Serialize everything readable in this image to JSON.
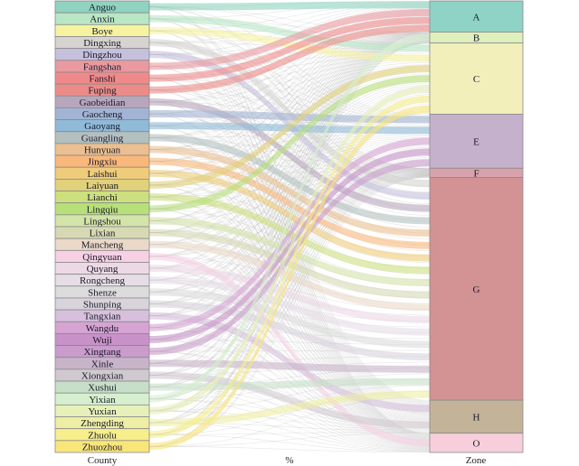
{
  "chart_data": {
    "type": "sankey",
    "axis_labels": {
      "left": "County",
      "middle": "%",
      "right": "Zone"
    },
    "counties": [
      {
        "name": "Anguo",
        "color": "#8fd3c0",
        "main_zone": "A"
      },
      {
        "name": "Anxin",
        "color": "#b9e6c4",
        "main_zone": "C"
      },
      {
        "name": "Boye",
        "color": "#f6f3a0",
        "main_zone": "C"
      },
      {
        "name": "Dingxing",
        "color": "#d6d3d0",
        "main_zone": "G"
      },
      {
        "name": "Dingzhou",
        "color": "#c5c0dc",
        "main_zone": "G"
      },
      {
        "name": "Fangshan",
        "color": "#e99aa0",
        "main_zone": "A"
      },
      {
        "name": "Fanshi",
        "color": "#f08a8a",
        "main_zone": "A"
      },
      {
        "name": "Fuping",
        "color": "#ec8c88",
        "main_zone": "A"
      },
      {
        "name": "Gaobeidian",
        "color": "#b8a6bd",
        "main_zone": "G"
      },
      {
        "name": "Gaocheng",
        "color": "#a2b4d4",
        "main_zone": "E"
      },
      {
        "name": "Gaoyang",
        "color": "#8fbad8",
        "main_zone": "E"
      },
      {
        "name": "Guangling",
        "color": "#b4c0c0",
        "main_zone": "G"
      },
      {
        "name": "Hunyuan",
        "color": "#ebbf8f",
        "main_zone": "G"
      },
      {
        "name": "Jingxiu",
        "color": "#f9b77a",
        "main_zone": "G"
      },
      {
        "name": "Laishui",
        "color": "#efcc7a",
        "main_zone": "G"
      },
      {
        "name": "Laiyuan",
        "color": "#e1d17a",
        "main_zone": "C"
      },
      {
        "name": "Lianchi",
        "color": "#cde07f",
        "main_zone": "G"
      },
      {
        "name": "Lingqiu",
        "color": "#b8e07a",
        "main_zone": "C"
      },
      {
        "name": "Lingshou",
        "color": "#d4e3a8",
        "main_zone": "G"
      },
      {
        "name": "Lixian",
        "color": "#d7d9b3",
        "main_zone": "G"
      },
      {
        "name": "Mancheng",
        "color": "#ead9c8",
        "main_zone": "G"
      },
      {
        "name": "Qingyuan",
        "color": "#f6d0e3",
        "main_zone": "O"
      },
      {
        "name": "Quyang",
        "color": "#edd9e6",
        "main_zone": "G"
      },
      {
        "name": "Rongcheng",
        "color": "#e6dde6",
        "main_zone": "G"
      },
      {
        "name": "Shenze",
        "color": "#dcdcdc",
        "main_zone": "G"
      },
      {
        "name": "Shunping",
        "color": "#d9d4dc",
        "main_zone": "G"
      },
      {
        "name": "Tangxian",
        "color": "#d6c0dc",
        "main_zone": "H"
      },
      {
        "name": "Wangdu",
        "color": "#d5a4d3",
        "main_zone": "E"
      },
      {
        "name": "Wuji",
        "color": "#c892c8",
        "main_zone": "E"
      },
      {
        "name": "Xingtang",
        "color": "#c99ccb",
        "main_zone": "E"
      },
      {
        "name": "Xinle",
        "color": "#c8b4c9",
        "main_zone": "G"
      },
      {
        "name": "Xiongxian",
        "color": "#d0c9d0",
        "main_zone": "H"
      },
      {
        "name": "Xushui",
        "color": "#c7dfc8",
        "main_zone": "G"
      },
      {
        "name": "Yixian",
        "color": "#d6f0cf",
        "main_zone": "B"
      },
      {
        "name": "Yuxian",
        "color": "#e6f0b8",
        "main_zone": "C"
      },
      {
        "name": "Zhengding",
        "color": "#eeeea4",
        "main_zone": "G"
      },
      {
        "name": "Zhuolu",
        "color": "#f7ee8c",
        "main_zone": "C"
      },
      {
        "name": "Zhuozhou",
        "color": "#f9e67a",
        "main_zone": "C"
      }
    ],
    "zones": [
      {
        "name": "A",
        "value": 6.8,
        "color": "#8fd3c6"
      },
      {
        "name": "B",
        "value": 2.4,
        "color": "#def0bc"
      },
      {
        "name": "C",
        "value": 15.5,
        "color": "#f2efbb"
      },
      {
        "name": "E",
        "value": 11.8,
        "color": "#c5b1cc"
      },
      {
        "name": "F",
        "value": 2.0,
        "color": "#d8a2ad"
      },
      {
        "name": "G",
        "value": 48.6,
        "color": "#d39294"
      },
      {
        "name": "H",
        "value": 7.2,
        "color": "#c3b399"
      },
      {
        "name": "O",
        "value": 4.2,
        "color": "#f7cfdc"
      }
    ],
    "main_flow_share": 0.6
  }
}
